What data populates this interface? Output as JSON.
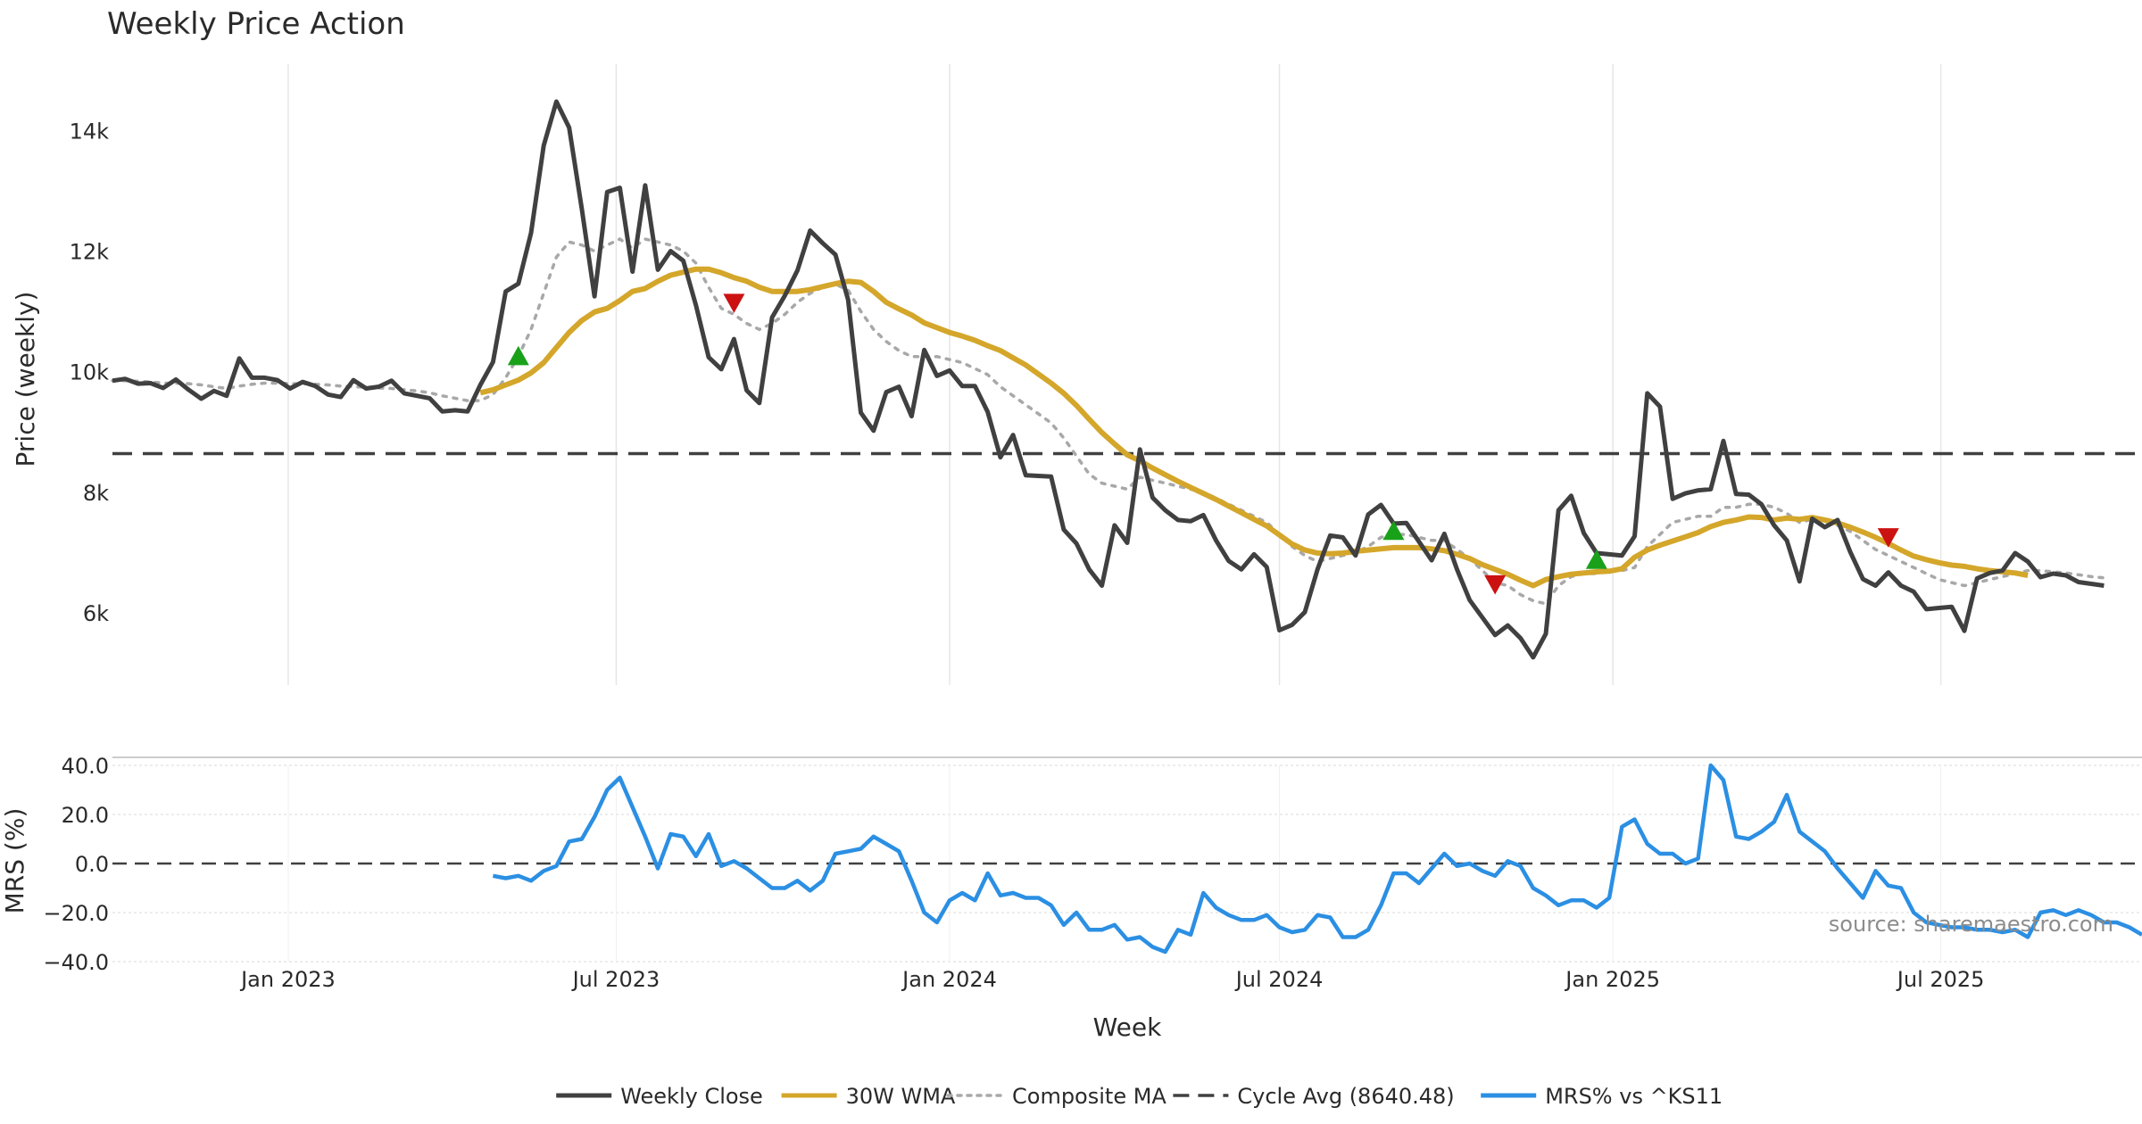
{
  "chart_data": {
    "type": "line",
    "title": "Weekly Price Action",
    "xlabel": "Week",
    "x_range": [
      "2022-09-26",
      "2025-10-20"
    ],
    "x_ticks": [
      {
        "date": "2023-01-01",
        "label": "Jan 2023"
      },
      {
        "date": "2023-07-01",
        "label": "Jul 2023"
      },
      {
        "date": "2024-01-01",
        "label": "Jan 2024"
      },
      {
        "date": "2024-07-01",
        "label": "Jul 2024"
      },
      {
        "date": "2025-01-01",
        "label": "Jan 2025"
      },
      {
        "date": "2025-07-01",
        "label": "Jul 2025"
      }
    ],
    "price_panel": {
      "ylabel": "Price (weekly)",
      "ylim": [
        4800,
        15100
      ],
      "y_ticks": [
        {
          "value": 6000,
          "label": "6k"
        },
        {
          "value": 8000,
          "label": "8k"
        },
        {
          "value": 10000,
          "label": "10k"
        },
        {
          "value": 12000,
          "label": "12k"
        },
        {
          "value": 14000,
          "label": "14k"
        }
      ],
      "start_date": "2022-09-26",
      "weekly_close": [
        9850,
        9880,
        9800,
        9810,
        9730,
        9870,
        9700,
        9550,
        9680,
        9600,
        10220,
        9900,
        9900,
        9860,
        9720,
        9830,
        9760,
        9620,
        9580,
        9860,
        9720,
        9750,
        9850,
        9640,
        9600,
        9560,
        9340,
        9360,
        9340,
        9780,
        10160,
        11330,
        11460,
        12300,
        13750,
        14480,
        14050,
        12700,
        11250,
        12980,
        13050,
        11660,
        13090,
        11690,
        12000,
        11840,
        11100,
        10240,
        10040,
        10540,
        9690,
        9480,
        10900,
        11260,
        11680,
        12340,
        12130,
        11940,
        11190,
        9320,
        9020,
        9660,
        9750,
        9260,
        10360,
        9930,
        10020,
        9760,
        9760,
        9330,
        8580,
        8950,
        8280,
        8270,
        8260,
        7380,
        7150,
        6720,
        6450,
        7450,
        7160,
        8710,
        7910,
        7700,
        7540,
        7520,
        7620,
        7200,
        6860,
        6720,
        6970,
        6760,
        5710,
        5800,
        6010,
        6720,
        7280,
        7250,
        6950,
        7630,
        7790,
        7480,
        7490,
        7180,
        6870,
        7310,
        6720,
        6210,
        5920,
        5630,
        5790,
        5580,
        5260,
        5650,
        7700,
        7940,
        7320,
        6990,
        6970,
        6950,
        7270,
        9640,
        9420,
        7890,
        7980,
        8030,
        8050,
        8850,
        7970,
        7960,
        7800,
        7450,
        7200,
        6520,
        7560,
        7420,
        7540,
        7010,
        6560,
        6450,
        6670,
        6450,
        6350,
        6060,
        6080,
        6100,
        5700,
        6570,
        6660,
        6700,
        6990,
        6850,
        6590,
        6650,
        6620,
        6510,
        6480,
        6450
      ],
      "wma_30w": {
        "start_index": 29,
        "values": [
          9650,
          9700,
          9780,
          9860,
          9980,
          10150,
          10400,
          10650,
          10850,
          10990,
          11050,
          11180,
          11330,
          11380,
          11500,
          11600,
          11650,
          11700,
          11700,
          11640,
          11560,
          11500,
          11400,
          11330,
          11330,
          11330,
          11360,
          11410,
          11460,
          11500,
          11480,
          11330,
          11150,
          11040,
          10940,
          10810,
          10730,
          10650,
          10590,
          10520,
          10430,
          10350,
          10230,
          10110,
          9960,
          9810,
          9640,
          9440,
          9210,
          8990,
          8800,
          8620,
          8520,
          8400,
          8290,
          8180,
          8080,
          7980,
          7880,
          7770,
          7660,
          7550,
          7440,
          7290,
          7140,
          7040,
          6990,
          6980,
          6990,
          7020,
          7040,
          7060,
          7080,
          7080,
          7080,
          7060,
          7030,
          6970,
          6900,
          6800,
          6720,
          6640,
          6540,
          6450,
          6550,
          6600,
          6640,
          6660,
          6680,
          6690,
          6730,
          6920,
          7040,
          7120,
          7190,
          7260,
          7330,
          7430,
          7500,
          7540,
          7590,
          7580,
          7540,
          7570,
          7550,
          7580,
          7540,
          7490,
          7420,
          7340,
          7250,
          7150,
          7040,
          6940,
          6880,
          6830,
          6790,
          6770,
          6730,
          6700,
          6680,
          6660,
          6620
        ]
      },
      "composite_ma": {
        "start_index": 0,
        "values": [
          9850,
          9850,
          9840,
          9830,
          9810,
          9810,
          9800,
          9780,
          9750,
          9720,
          9760,
          9790,
          9810,
          9810,
          9800,
          9800,
          9790,
          9780,
          9760,
          9750,
          9740,
          9730,
          9720,
          9700,
          9680,
          9650,
          9600,
          9560,
          9520,
          9520,
          9620,
          9900,
          10250,
          10700,
          11300,
          11900,
          12150,
          12100,
          12000,
          12100,
          12200,
          12050,
          12200,
          12150,
          12100,
          12000,
          11800,
          11400,
          11050,
          10950,
          10800,
          10700,
          10800,
          10950,
          11150,
          11300,
          11400,
          11450,
          11350,
          11000,
          10700,
          10500,
          10350,
          10250,
          10250,
          10250,
          10200,
          10150,
          10050,
          9950,
          9750,
          9600,
          9450,
          9300,
          9150,
          8900,
          8600,
          8300,
          8150,
          8100,
          8050,
          8250,
          8200,
          8150,
          8100,
          8050,
          8000,
          7900,
          7800,
          7700,
          7600,
          7500,
          7300,
          7100,
          6950,
          6850,
          6900,
          6950,
          7000,
          7100,
          7250,
          7300,
          7300,
          7250,
          7200,
          7200,
          7050,
          6900,
          6700,
          6500,
          6450,
          6300,
          6200,
          6150,
          6450,
          6600,
          6650,
          6650,
          6700,
          6700,
          6750,
          7100,
          7300,
          7500,
          7550,
          7600,
          7600,
          7750,
          7750,
          7800,
          7800,
          7750,
          7650,
          7500,
          7550,
          7500,
          7450,
          7350,
          7200,
          7050,
          6950,
          6850,
          6750,
          6650,
          6550,
          6500,
          6450,
          6500,
          6550,
          6600,
          6650,
          6700,
          6700,
          6680,
          6660,
          6630,
          6600,
          6580
        ]
      },
      "cycle_avg": 8640.48,
      "buy_signals": [
        {
          "index": 32,
          "value": 10250
        },
        {
          "index": 101,
          "value": 7350
        },
        {
          "index": 117,
          "value": 6870
        }
      ],
      "sell_signals": [
        {
          "index": 49,
          "value": 11150
        },
        {
          "index": 109,
          "value": 6480
        },
        {
          "index": 140,
          "value": 7260
        }
      ]
    },
    "mrs_panel": {
      "ylabel": "MRS (%)",
      "ylim": [
        -40,
        40
      ],
      "y_ticks": [
        {
          "value": 40,
          "label": "40.0"
        },
        {
          "value": 20,
          "label": "20.0"
        },
        {
          "value": 0,
          "label": "0.0"
        },
        {
          "value": -20,
          "label": "−20.0"
        },
        {
          "value": -40,
          "label": "−40.0"
        }
      ],
      "start_date": "2023-04-24",
      "values": [
        -5,
        -6,
        -5,
        -7,
        -3,
        -1,
        9,
        10,
        19,
        30,
        35,
        23,
        11,
        -2,
        12,
        11,
        3,
        12,
        -1,
        1,
        -2,
        -6,
        -10,
        -10,
        -7,
        -11,
        -7,
        4,
        5,
        6,
        11,
        8,
        5,
        -7,
        -20,
        -24,
        -15,
        -12,
        -15,
        -4,
        -13,
        -12,
        -14,
        -14,
        -17,
        -25,
        -20,
        -27,
        -27,
        -25,
        -31,
        -30,
        -34,
        -36,
        -27,
        -29,
        -12,
        -18,
        -21,
        -23,
        -23,
        -21,
        -26,
        -28,
        -27,
        -21,
        -22,
        -30,
        -30,
        -27,
        -17,
        -4,
        -4,
        -8,
        -2,
        4,
        -1,
        0,
        -3,
        -5,
        1,
        -1,
        -10,
        -13,
        -17,
        -15,
        -15,
        -18,
        -14,
        15,
        18,
        8,
        4,
        4,
        0,
        2,
        40,
        34,
        11,
        10,
        13,
        17,
        28,
        13,
        9,
        5,
        -2,
        -8,
        -14,
        -3,
        -9,
        -10,
        -20,
        -24,
        -25,
        -26,
        -26,
        -27,
        -27,
        -28,
        -27,
        -30,
        -20,
        -19,
        -21,
        -19,
        -21,
        -24,
        -24,
        -26,
        -29
      ]
    },
    "legend": [
      {
        "key": "weekly_close",
        "label": "Weekly Close",
        "color": "#404040",
        "style": "solid"
      },
      {
        "key": "wma_30w",
        "label": "30W WMA",
        "color": "#d4a62a",
        "style": "solid"
      },
      {
        "key": "composite_ma",
        "label": "Composite MA",
        "color": "#a8a8a8",
        "style": "dotted"
      },
      {
        "key": "cycle_avg",
        "label": "Cycle Avg (8640.48)",
        "color": "#404040",
        "style": "dashed"
      },
      {
        "key": "mrs",
        "label": "MRS% vs ^KS11",
        "color": "#2b8fe3",
        "style": "solid"
      }
    ],
    "annotation": "source: sharemaestro.com",
    "colors": {
      "close": "#404040",
      "wma": "#d4a62a",
      "composite": "#a8a8a8",
      "cycle": "#404040",
      "mrs": "#2b8fe3",
      "buy": "#1aa11a",
      "sell": "#cc1111",
      "grid": "#e6e6e6"
    }
  }
}
